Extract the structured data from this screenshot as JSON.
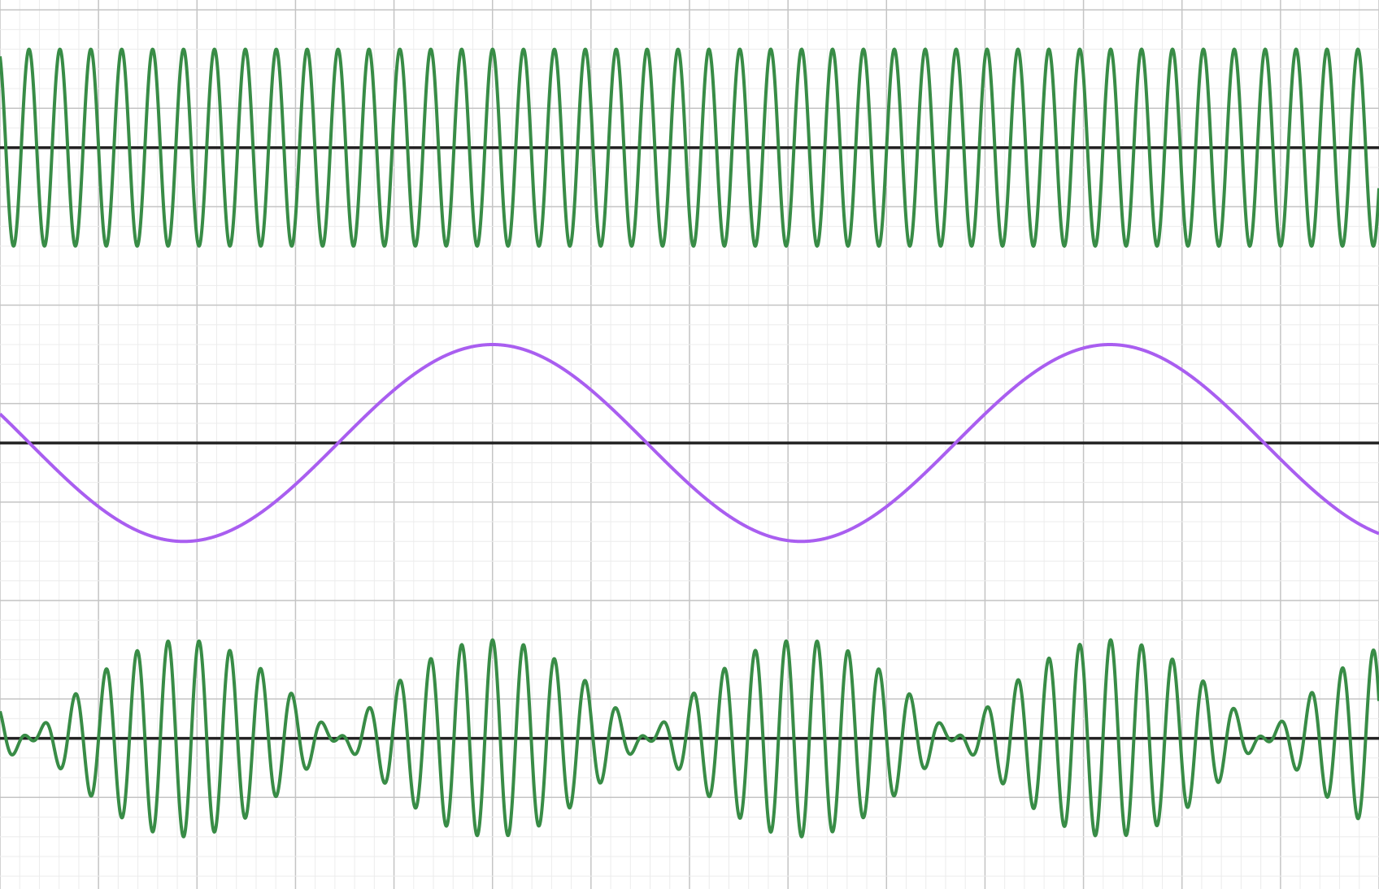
{
  "graph": {
    "curves": [
      {
        "color": "#388c46"
      },
      {
        "color": "#a95ef0"
      },
      {
        "color": "#388c46"
      }
    ],
    "axis_color": "#222222"
  }
}
